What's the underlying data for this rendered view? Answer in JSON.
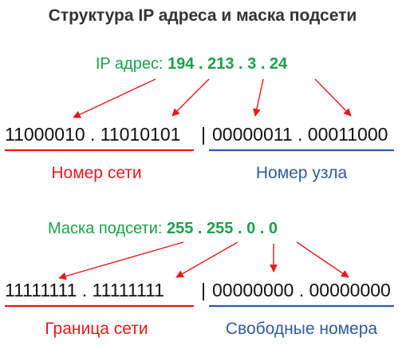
{
  "title": "Структура IP адреса и маска подсети",
  "colors": {
    "green": "#1aa24a",
    "red": "#e8191c",
    "blue": "#2e5c9e",
    "text": "#111111",
    "title": "#333333"
  },
  "ip": {
    "label": "IP адрес: ",
    "value": "194 . 213 . 3 . 24",
    "binary_network": "11000010 . 11010101",
    "separator": "|",
    "binary_host": "00000011 . 00011000",
    "network_label": "Номер сети",
    "host_label": "Номер узла"
  },
  "mask": {
    "label": "Маска подсети: ",
    "value": "255 . 255 . 0 . 0",
    "binary_network": "11111111 . 11111111",
    "separator": "|",
    "binary_host": "00000000 . 00000000",
    "network_label": "Граница сети",
    "host_label": "Свободные номера"
  },
  "arrow_icon": "arrow-icon"
}
